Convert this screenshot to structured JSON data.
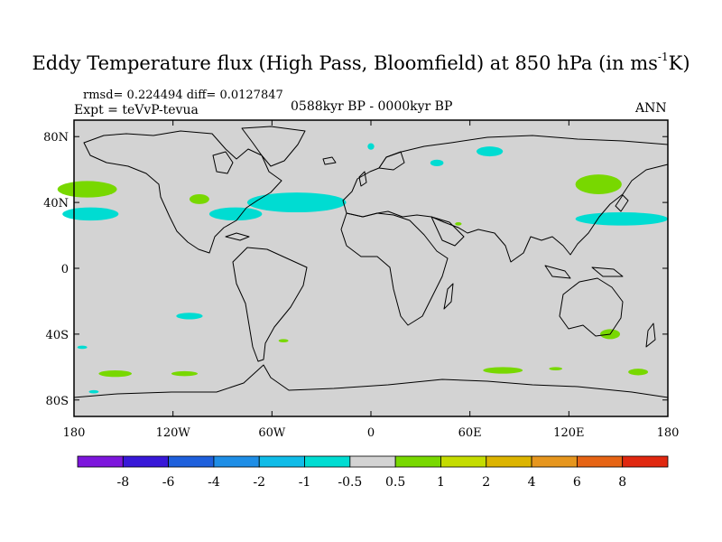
{
  "title": {
    "main": "Eddy Temperature flux (High Pass, Bloomfield) at 850 hPa (in ms",
    "sup": "-1",
    "tail": "K)"
  },
  "stats": "rmsd= 0.224494  diff= 0.0127847",
  "expt": "Expt = teVvP-tevua",
  "period": "0588kyr BP - 0000kyr BP",
  "season": "ANN",
  "map": {
    "projection": "cylindrical-equidistant",
    "lon_range": [
      -180,
      180
    ],
    "lat_range": [
      -90,
      90
    ],
    "background_color": "#d3d3d3",
    "coastline_color": "#000000",
    "x_ticks": [
      {
        "lon": -180,
        "label": "180"
      },
      {
        "lon": -120,
        "label": "120W"
      },
      {
        "lon": -60,
        "label": "60W"
      },
      {
        "lon": 0,
        "label": "0"
      },
      {
        "lon": 60,
        "label": "60E"
      },
      {
        "lon": 120,
        "label": "120E"
      },
      {
        "lon": 180,
        "label": "180"
      }
    ],
    "y_ticks": [
      {
        "lat": 80,
        "label": "80N"
      },
      {
        "lat": 40,
        "label": "40N"
      },
      {
        "lat": 0,
        "label": "0"
      },
      {
        "lat": -40,
        "label": "40S"
      },
      {
        "lat": -80,
        "label": "80S"
      }
    ],
    "anomaly_regions": [
      {
        "name": "n-pacific-east-green",
        "lon": -172,
        "lat": 48,
        "dlon": 18,
        "dlat": 5,
        "color": "#78d800"
      },
      {
        "name": "n-pacific-east-cyan",
        "lon": -170,
        "lat": 33,
        "dlon": 17,
        "dlat": 4,
        "color": "#00dcd2"
      },
      {
        "name": "ne-pacific-green",
        "lon": -104,
        "lat": 42,
        "dlon": 6,
        "dlat": 3,
        "color": "#78d800"
      },
      {
        "name": "n-atlantic-cyan",
        "lon": -45,
        "lat": 40,
        "dlon": 30,
        "dlat": 6,
        "color": "#00dcd2"
      },
      {
        "name": "e-us-cyan",
        "lon": -82,
        "lat": 33,
        "dlon": 16,
        "dlat": 4,
        "color": "#00dcd2"
      },
      {
        "name": "greenland-sea-cyan",
        "lon": 0,
        "lat": 74,
        "dlon": 2,
        "dlat": 2,
        "color": "#00dcd2"
      },
      {
        "name": "barents-cyan",
        "lon": 40,
        "lat": 64,
        "dlon": 4,
        "dlat": 2,
        "color": "#00dcd2"
      },
      {
        "name": "kara-cyan",
        "lon": 72,
        "lat": 71,
        "dlon": 8,
        "dlat": 3,
        "color": "#00dcd2"
      },
      {
        "name": "nw-pacific-green",
        "lon": 138,
        "lat": 51,
        "dlon": 14,
        "dlat": 6,
        "color": "#78d800"
      },
      {
        "name": "nw-pacific-cyan",
        "lon": 152,
        "lat": 30,
        "dlon": 28,
        "dlat": 4,
        "color": "#00dcd2"
      },
      {
        "name": "arabian-green",
        "lon": 53,
        "lat": 27,
        "dlon": 2,
        "dlat": 1,
        "color": "#78d800"
      },
      {
        "name": "s-pacific-cyan",
        "lon": -110,
        "lat": -29,
        "dlon": 8,
        "dlat": 2,
        "color": "#00dcd2"
      },
      {
        "name": "s-atlantic-green",
        "lon": -53,
        "lat": -44,
        "dlon": 3,
        "dlat": 1,
        "color": "#78d800"
      },
      {
        "name": "s-ocean-cyan-west",
        "lon": -175,
        "lat": -48,
        "dlon": 3,
        "dlat": 1,
        "color": "#00dcd2"
      },
      {
        "name": "s-ocean-green-1",
        "lon": -155,
        "lat": -64,
        "dlon": 10,
        "dlat": 2,
        "color": "#78d800"
      },
      {
        "name": "s-ocean-green-2",
        "lon": -113,
        "lat": -64,
        "dlon": 8,
        "dlat": 1.5,
        "color": "#78d800"
      },
      {
        "name": "s-ocean-cyan-2",
        "lon": -168,
        "lat": -75,
        "dlon": 3,
        "dlat": 1,
        "color": "#00dcd2"
      },
      {
        "name": "s-indian-green-1",
        "lon": 80,
        "lat": -62,
        "dlon": 12,
        "dlat": 2,
        "color": "#78d800"
      },
      {
        "name": "s-indian-green-2",
        "lon": 112,
        "lat": -61,
        "dlon": 4,
        "dlat": 1,
        "color": "#78d800"
      },
      {
        "name": "australia-green",
        "lon": 145,
        "lat": -40,
        "dlon": 6,
        "dlat": 3,
        "color": "#78d800"
      },
      {
        "name": "s-pacific-west-green",
        "lon": 162,
        "lat": -63,
        "dlon": 6,
        "dlat": 2,
        "color": "#78d800"
      }
    ]
  },
  "colorbar": {
    "colors": [
      "#7d16dc",
      "#3818d8",
      "#1e60dc",
      "#1e8ee6",
      "#10bce8",
      "#00dcd2",
      "#d3d3d3",
      "#78d800",
      "#c4dc00",
      "#dcb400",
      "#e6961e",
      "#e66414",
      "#e02810"
    ],
    "labels": [
      "-8",
      "-6",
      "-4",
      "-2",
      "-1",
      "-0.5",
      "0.5",
      "1",
      "2",
      "4",
      "6",
      "8"
    ]
  }
}
